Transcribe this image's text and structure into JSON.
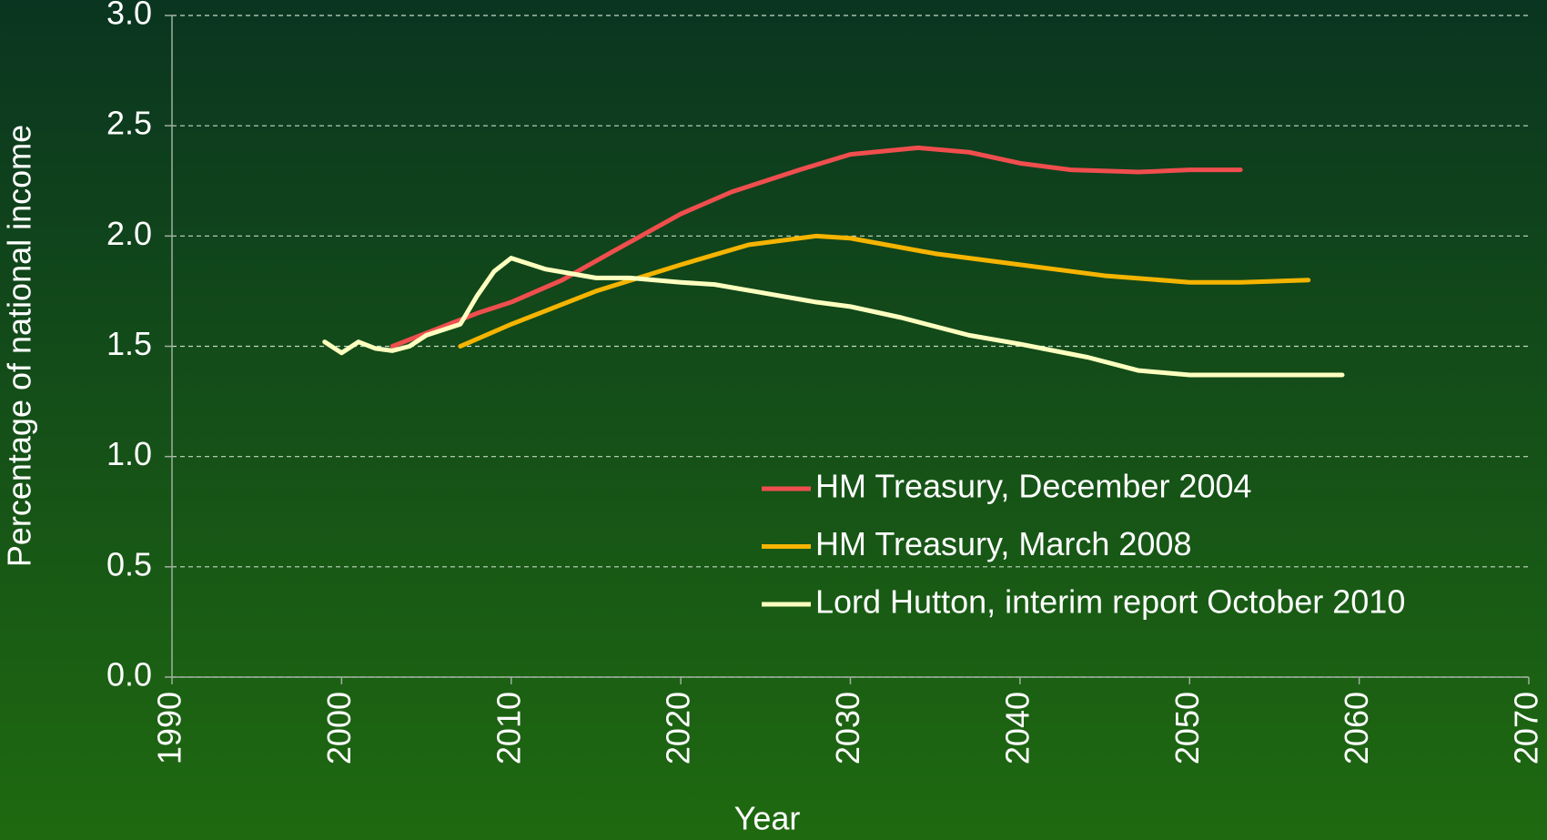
{
  "chart_data": {
    "type": "line",
    "x_label": "Year",
    "y_label": "Percentage of national income",
    "xlim": [
      1990,
      2070
    ],
    "xticks": [
      1990,
      2000,
      2010,
      2020,
      2030,
      2040,
      2050,
      2060,
      2070
    ],
    "ylim": [
      0,
      3
    ],
    "yticks": [
      {
        "value": 0,
        "label": "0.0"
      },
      0.5,
      {
        "value": 1,
        "label": "1.0"
      },
      1.5,
      {
        "value": 2,
        "label": "2.0"
      },
      2.5,
      {
        "value": 3,
        "label": "3.0"
      }
    ],
    "grid": true,
    "legend": "lower-right",
    "series": [
      {
        "name": "HM Treasury, December 2004",
        "color": "#f04e4e",
        "x": [
          2003,
          2005,
          2008,
          2010,
          2013,
          2016,
          2020,
          2023,
          2027,
          2030,
          2034,
          2037,
          2040,
          2043,
          2047,
          2050,
          2053
        ],
        "values": [
          1.5,
          1.56,
          1.65,
          1.7,
          1.8,
          1.93,
          2.1,
          2.2,
          2.3,
          2.37,
          2.4,
          2.38,
          2.33,
          2.3,
          2.29,
          2.3,
          2.3
        ]
      },
      {
        "name": "HM Treasury, March 2008",
        "color": "#f5b400",
        "x": [
          2007,
          2010,
          2015,
          2020,
          2024,
          2028,
          2030,
          2035,
          2040,
          2045,
          2050,
          2053,
          2057
        ],
        "values": [
          1.5,
          1.6,
          1.75,
          1.87,
          1.96,
          2.0,
          1.99,
          1.92,
          1.87,
          1.82,
          1.79,
          1.79,
          1.8
        ]
      },
      {
        "name": "Lord Hutton, interim report October 2010",
        "color": "#ffffc0",
        "x": [
          1999,
          2000,
          2001,
          2002,
          2003,
          2004,
          2005,
          2007,
          2008,
          2009,
          2010,
          2012,
          2015,
          2017,
          2020,
          2022,
          2025,
          2028,
          2030,
          2033,
          2037,
          2040,
          2044,
          2047,
          2050,
          2055,
          2059
        ],
        "values": [
          1.52,
          1.47,
          1.52,
          1.49,
          1.48,
          1.5,
          1.55,
          1.6,
          1.73,
          1.84,
          1.9,
          1.85,
          1.81,
          1.81,
          1.79,
          1.78,
          1.74,
          1.7,
          1.68,
          1.63,
          1.55,
          1.51,
          1.45,
          1.39,
          1.37,
          1.37,
          1.37
        ]
      }
    ]
  }
}
